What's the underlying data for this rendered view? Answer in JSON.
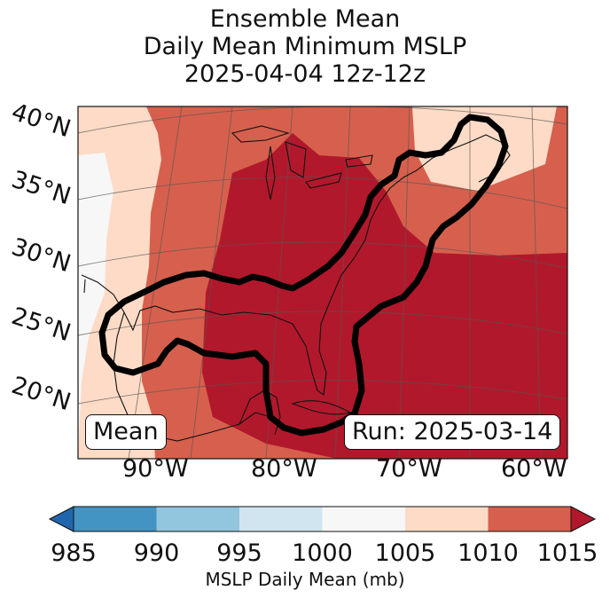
{
  "title": {
    "line1": "Ensemble Mean",
    "line2": "Daily Mean Minimum MSLP",
    "line3": "2025-04-04 12z-12z"
  },
  "map": {
    "lat_labels": [
      "40°N",
      "35°N",
      "30°N",
      "25°N",
      "20°N"
    ],
    "lon_labels": [
      "90°W",
      "80°W",
      "70°W",
      "60°W"
    ],
    "mean_label": "Mean",
    "run_label": "Run: 2025-03-14",
    "colors": {
      "lt1000": "#f7f7f7",
      "r1005": "#fddbc7",
      "r1010": "#d6604d",
      "r1015": "#b2182b",
      "contour": "#000000",
      "coast": "#111111",
      "grid": "#555555"
    }
  },
  "colorbar": {
    "ticks": [
      "985",
      "990",
      "995",
      "1000",
      "1005",
      "1010",
      "1015"
    ],
    "colors": [
      "#2166ac",
      "#4393c3",
      "#92c5de",
      "#d1e5f0",
      "#f7f7f7",
      "#fddbc7",
      "#d6604d",
      "#b2182b"
    ],
    "label": "MSLP Daily Mean (mb)"
  }
}
